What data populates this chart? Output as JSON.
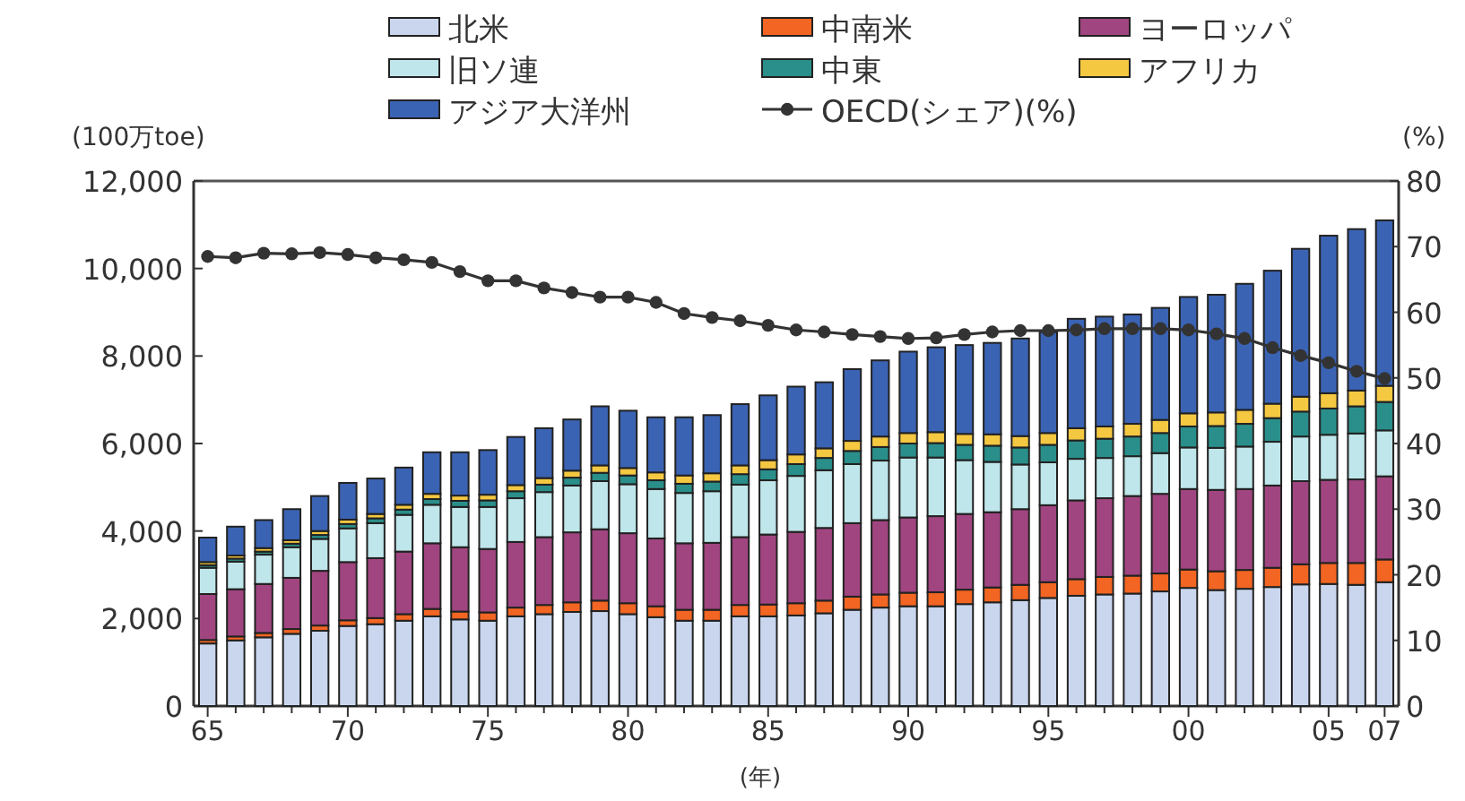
{
  "chart_data": {
    "type": "bar",
    "stacked": true,
    "xlabel": "(年)",
    "ylabel": "(100万toe)",
    "y2label": "(%)",
    "legend": "top",
    "grid": false,
    "categories": [
      "65",
      null,
      null,
      null,
      null,
      "70",
      null,
      null,
      null,
      null,
      "75",
      null,
      null,
      null,
      null,
      "80",
      null,
      null,
      null,
      null,
      "85",
      null,
      null,
      null,
      null,
      "90",
      null,
      null,
      null,
      null,
      "95",
      null,
      null,
      null,
      null,
      "00",
      null,
      null,
      null,
      null,
      "05",
      null,
      "07"
    ],
    "ylim": [
      0,
      12000
    ],
    "yticks": [
      0,
      {
        "value": 2000,
        "label": "2,000"
      },
      {
        "value": 4000,
        "label": "4,000"
      },
      {
        "value": 6000,
        "label": "6,000"
      },
      {
        "value": 8000,
        "label": "8,000"
      },
      {
        "value": 10000,
        "label": "10,000"
      },
      {
        "value": 12000,
        "label": "12,000"
      }
    ],
    "y2lim": [
      0,
      80
    ],
    "y2ticks": [
      0,
      10,
      20,
      30,
      40,
      50,
      60,
      70,
      80
    ],
    "series": [
      {
        "name": "北米",
        "color": "#c9d6ee",
        "values": [
          1430,
          1500,
          1570,
          1650,
          1720,
          1830,
          1870,
          1950,
          2050,
          1980,
          1950,
          2050,
          2100,
          2150,
          2170,
          2100,
          2030,
          1950,
          1950,
          2050,
          2050,
          2070,
          2120,
          2200,
          2250,
          2280,
          2280,
          2330,
          2370,
          2420,
          2470,
          2520,
          2550,
          2570,
          2620,
          2700,
          2650,
          2680,
          2720,
          2780,
          2790,
          2770,
          2830
        ]
      },
      {
        "name": "中南米",
        "color": "#f26522",
        "values": [
          80,
          90,
          100,
          110,
          120,
          130,
          140,
          150,
          170,
          180,
          190,
          200,
          210,
          220,
          240,
          250,
          250,
          250,
          250,
          260,
          270,
          280,
          290,
          300,
          300,
          310,
          320,
          330,
          340,
          350,
          360,
          380,
          400,
          410,
          410,
          420,
          430,
          430,
          440,
          460,
          480,
          500,
          520
        ]
      },
      {
        "name": "ヨーロッパ",
        "color": "#a0457f",
        "values": [
          1050,
          1080,
          1120,
          1170,
          1250,
          1330,
          1370,
          1430,
          1500,
          1470,
          1450,
          1500,
          1550,
          1600,
          1630,
          1600,
          1550,
          1520,
          1530,
          1550,
          1600,
          1630,
          1660,
          1680,
          1700,
          1720,
          1740,
          1730,
          1720,
          1730,
          1760,
          1800,
          1800,
          1820,
          1820,
          1840,
          1860,
          1850,
          1880,
          1900,
          1900,
          1910,
          1900
        ]
      },
      {
        "name": "旧ソ連",
        "color": "#bfe6ea",
        "values": [
          600,
          630,
          670,
          700,
          730,
          770,
          800,
          840,
          880,
          920,
          960,
          1000,
          1030,
          1070,
          1100,
          1120,
          1130,
          1150,
          1180,
          1200,
          1240,
          1280,
          1320,
          1350,
          1360,
          1370,
          1340,
          1230,
          1150,
          1020,
          980,
          950,
          920,
          910,
          930,
          950,
          960,
          970,
          1000,
          1020,
          1030,
          1050,
          1050
        ]
      },
      {
        "name": "中東",
        "color": "#2a8f8a",
        "values": [
          60,
          70,
          70,
          80,
          90,
          100,
          110,
          120,
          130,
          140,
          150,
          160,
          170,
          180,
          190,
          200,
          200,
          210,
          220,
          240,
          250,
          270,
          280,
          300,
          310,
          320,
          330,
          350,
          370,
          390,
          400,
          420,
          440,
          450,
          460,
          480,
          500,
          520,
          540,
          570,
          600,
          620,
          650
        ]
      },
      {
        "name": "アフリカ",
        "color": "#f5c842",
        "values": [
          70,
          70,
          80,
          80,
          90,
          100,
          100,
          110,
          120,
          120,
          130,
          140,
          150,
          160,
          170,
          170,
          180,
          190,
          190,
          200,
          210,
          220,
          220,
          230,
          240,
          240,
          250,
          250,
          260,
          260,
          270,
          280,
          280,
          290,
          300,
          300,
          310,
          320,
          330,
          340,
          350,
          360,
          370
        ]
      },
      {
        "name": "アジア大洋州",
        "color": "#3b63b3",
        "values": [
          560,
          660,
          640,
          710,
          800,
          840,
          810,
          850,
          950,
          990,
          1020,
          1100,
          1140,
          1170,
          1350,
          1310,
          1260,
          1330,
          1330,
          1400,
          1480,
          1550,
          1510,
          1640,
          1740,
          1860,
          1940,
          2030,
          2090,
          2230,
          2310,
          2500,
          2510,
          2500,
          2560,
          2660,
          2690,
          2880,
          3040,
          3380,
          3600,
          3690,
          3780
        ]
      },
      {
        "name": "OECD(シェア)(%)",
        "type": "line",
        "axis": "y2",
        "color": "#333333",
        "marker": "circle",
        "values": [
          68.5,
          68.3,
          69,
          68.9,
          69.1,
          68.8,
          68.3,
          68,
          67.6,
          66.2,
          64.8,
          64.8,
          63.7,
          63,
          62.3,
          62.3,
          61.5,
          59.8,
          59.2,
          58.7,
          58,
          57.3,
          57,
          56.6,
          56.3,
          56,
          56.1,
          56.6,
          57,
          57.2,
          57.2,
          57.3,
          57.5,
          57.5,
          57.5,
          57.3,
          56.7,
          56,
          54.6,
          53.4,
          52.3,
          51,
          49.9
        ]
      }
    ]
  }
}
